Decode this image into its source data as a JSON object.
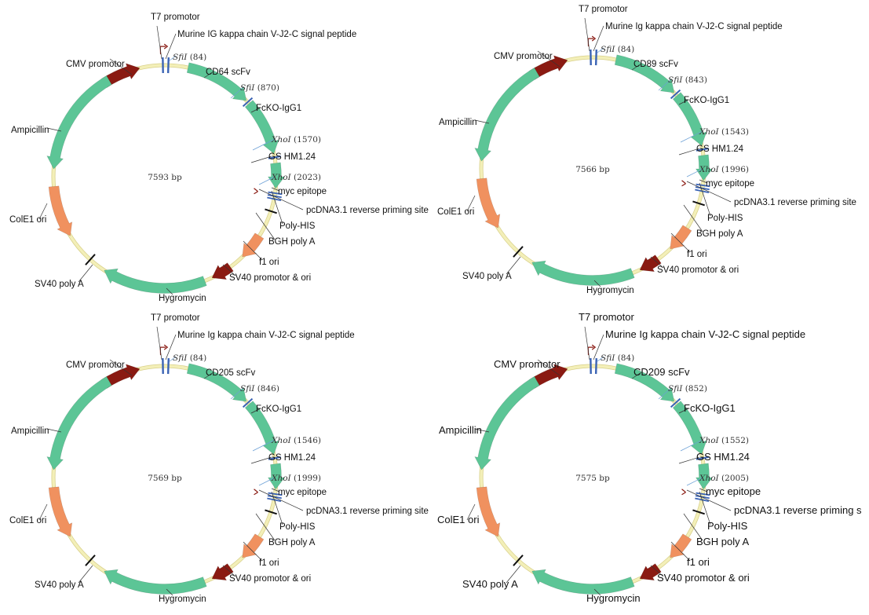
{
  "maps": [
    {
      "id": "cd64",
      "size_text": "7593 bp",
      "labels": {
        "t7": "T7 promotor",
        "signal": "Murine IG kappa chain V-J2-C signal peptide",
        "cmv": "CMV promotor",
        "sfi1": "SfiI (84)",
        "scfv": "CD64 scFv",
        "sfi2": "SfiI (870)",
        "fcko": "FcKO-IgG1",
        "amp": "Ampicillin",
        "xho1": "XhoI (1570)",
        "gs": "GS HM1.24",
        "xho2": "XhoI (2023)",
        "myc": "myc epitope",
        "pcdna": "pcDNA3.1 reverse priming site",
        "colE1": "ColE1 ori",
        "polyhis": "Poly-HIS",
        "bgh": "BGH poly A",
        "f1": "f1 ori",
        "sv40prom": "SV40 promotor & ori",
        "sv40polya": "SV40 poly A",
        "hygro": "Hygromycin"
      }
    },
    {
      "id": "cd89",
      "size_text": "7566 bp",
      "labels": {
        "t7": "T7 promotor",
        "signal": "Murine Ig kappa chain V-J2-C signal peptide",
        "cmv": "CMV promotor",
        "sfi1": "SfiI (84)",
        "scfv": "CD89 scFv",
        "sfi2": "SfiI (843)",
        "fcko": "FcKO-IgG1",
        "amp": "Ampicillin",
        "xho1": "XhoI (1543)",
        "gs": "GS HM1.24",
        "xho2": "XhoI (1996)",
        "myc": "myc epitope",
        "pcdna": "pcDNA3.1 reverse priming site",
        "colE1": "ColE1 ori",
        "polyhis": "Poly-HIS",
        "bgh": "BGH poly A",
        "f1": "f1 ori",
        "sv40prom": "SV40 promotor & ori",
        "sv40polya": "SV40 poly A",
        "hygro": "Hygromycin"
      }
    },
    {
      "id": "cd205",
      "size_text": "7569 bp",
      "labels": {
        "t7": "T7 promotor",
        "signal": "Murine Ig kappa chain V-J2-C signal peptide",
        "cmv": "CMV promotor",
        "sfi1": "SfiI (84)",
        "scfv": "CD205 scFv",
        "sfi2": "SfiI (846)",
        "fcko": "FcKO-IgG1",
        "amp": "Ampicillin",
        "xho1": "XhoI (1546)",
        "gs": "GS HM1.24",
        "xho2": "XhoI (1999)",
        "myc": "myc epitope",
        "pcdna": "pcDNA3.1 reverse priming site",
        "colE1": "ColE1 ori",
        "polyhis": "Poly-HIS",
        "bgh": "BGH poly A",
        "f1": "f1 ori",
        "sv40prom": "SV40 promotor & ori",
        "sv40polya": "SV40 poly A",
        "hygro": "Hygromycin"
      }
    },
    {
      "id": "cd209",
      "size_text": "7575 bp",
      "labels": {
        "t7": "T7 promotor",
        "signal": "Murine Ig kappa chain V-J2-C signal peptide",
        "cmv": "CMV promotor",
        "sfi1": "SfiI (84)",
        "scfv": "CD209 scFv",
        "sfi2": "SfiI (852)",
        "fcko": "FcKO-IgG1",
        "amp": "Ampicillin",
        "xho1": "XhoI (1552)",
        "gs": "GS HM1.24",
        "xho2": "XhoI (2005)",
        "myc": "myc epitope",
        "pcdna": "pcDNA3.1 reverse priming s",
        "colE1": "ColE1 ori",
        "polyhis": "Poly-HIS",
        "bgh": "BGH poly A",
        "f1": "f1 ori",
        "sv40prom": "SV40 promotor & ori",
        "sv40polya": "SV40 poly A",
        "hygro": "Hygromycin"
      }
    }
  ],
  "colors": {
    "backbone": "#f3efb8",
    "backbone_edge": "#d8d08a",
    "cds_green": "#5cc596",
    "promoter_red": "#8a1a12",
    "origin_orange": "#f0915f",
    "site_blue": "#3a63b4",
    "leader_line": "#333333",
    "site_line": "#6a9fd6",
    "terminator": "#111111"
  }
}
